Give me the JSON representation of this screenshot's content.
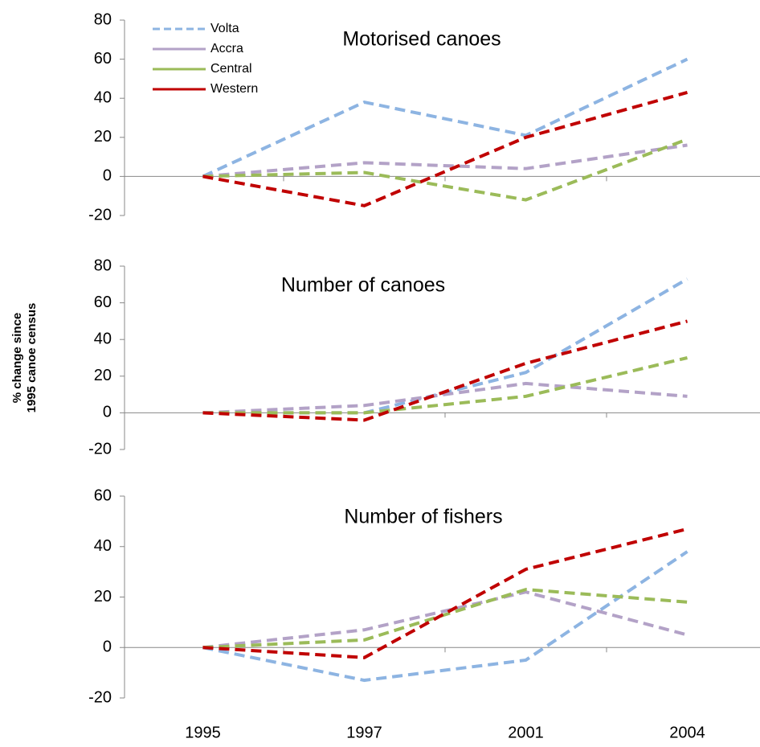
{
  "chart_data": [
    {
      "type": "line",
      "title": "Motorised canoes",
      "ylim": [
        -20,
        80
      ],
      "yticks": [
        -20,
        0,
        20,
        40,
        60,
        80
      ],
      "legend": "upper left",
      "series": [
        {
          "name": "Volta",
          "color": "#8db4e2",
          "values": [
            0,
            38,
            21,
            60
          ]
        },
        {
          "name": "Accra",
          "color": "#b3a2c7",
          "values": [
            0,
            7,
            4,
            16
          ]
        },
        {
          "name": "Central",
          "color": "#9bbb59",
          "values": [
            0,
            2,
            -12,
            19
          ]
        },
        {
          "name": "Western",
          "color": "#c00000",
          "values": [
            0,
            -15,
            20,
            43
          ]
        }
      ]
    },
    {
      "type": "line",
      "title": "Number of canoes",
      "y_label": [
        "% change since",
        "1995 canoe census"
      ],
      "ylim": [
        -20,
        80
      ],
      "yticks": [
        -20,
        0,
        20,
        40,
        60,
        80
      ],
      "series": [
        {
          "name": "Volta",
          "color": "#8db4e2",
          "values": [
            0,
            0,
            22,
            73
          ]
        },
        {
          "name": "Accra",
          "color": "#b3a2c7",
          "values": [
            0,
            4,
            16,
            9
          ]
        },
        {
          "name": "Central",
          "color": "#9bbb59",
          "values": [
            0,
            0,
            9,
            30
          ]
        },
        {
          "name": "Western",
          "color": "#c00000",
          "values": [
            0,
            -4,
            27,
            50
          ]
        }
      ]
    },
    {
      "type": "line",
      "title": "Number of fishers",
      "categories": [
        "1995",
        "1997",
        "2001",
        "2004"
      ],
      "ylim": [
        -20,
        60
      ],
      "yticks": [
        -20,
        0,
        20,
        40,
        60
      ],
      "series": [
        {
          "name": "Volta",
          "color": "#8db4e2",
          "values": [
            0,
            -13,
            -5,
            38
          ]
        },
        {
          "name": "Accra",
          "color": "#b3a2c7",
          "values": [
            0,
            7,
            22,
            5
          ]
        },
        {
          "name": "Central",
          "color": "#9bbb59",
          "values": [
            0,
            3,
            23,
            18
          ]
        },
        {
          "name": "Western",
          "color": "#c00000",
          "values": [
            0,
            -4,
            31,
            47
          ]
        }
      ]
    }
  ]
}
